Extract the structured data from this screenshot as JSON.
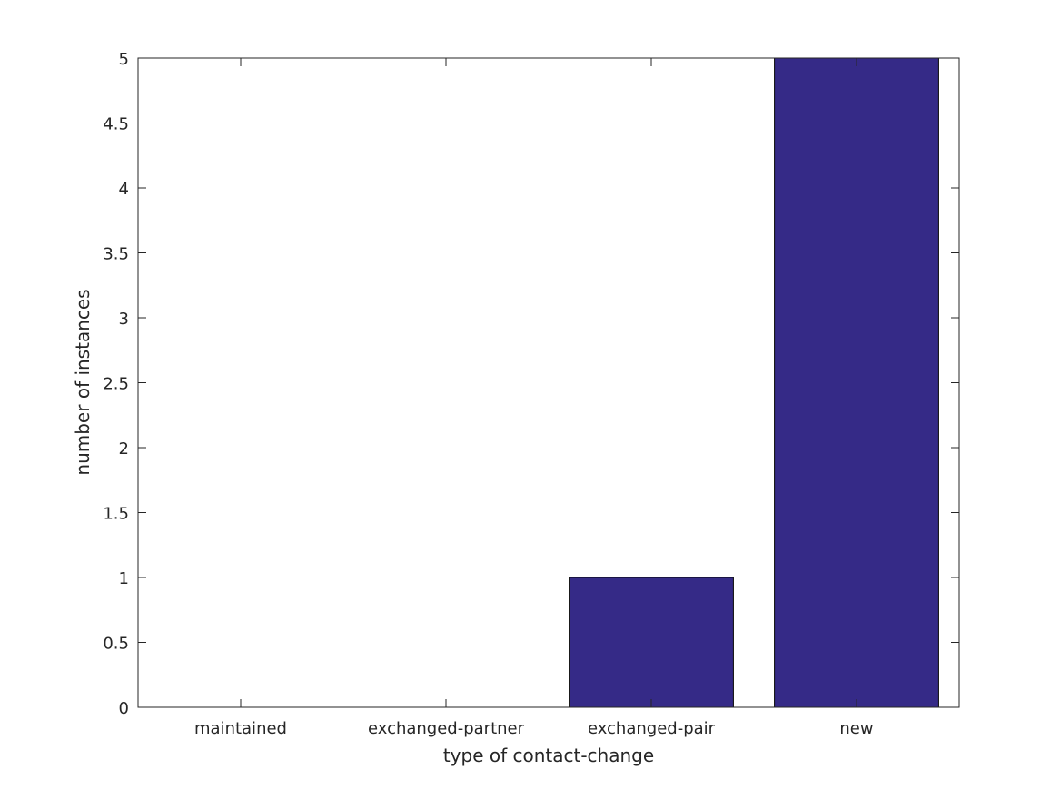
{
  "chart_data": {
    "type": "bar",
    "categories": [
      "maintained",
      "exchanged-partner",
      "exchanged-pair",
      "new"
    ],
    "values": [
      0,
      0,
      1,
      5
    ],
    "title": "",
    "xlabel": "type of contact-change",
    "ylabel": "number of instances",
    "ylim": [
      0,
      5
    ],
    "yticks": [
      "0",
      "0.5",
      "1",
      "1.5",
      "2",
      "2.5",
      "3",
      "3.5",
      "4",
      "4.5",
      "5"
    ],
    "grid": false,
    "bar_color": "#352a87",
    "axis_color": "#262626"
  }
}
